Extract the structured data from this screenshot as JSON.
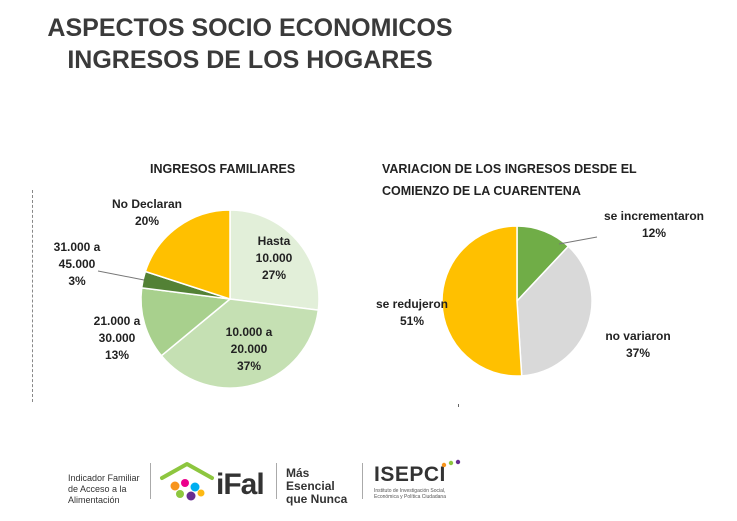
{
  "header": {
    "title_line1": "ASPECTOS SOCIO ECONOMICOS",
    "title_line2": "INGRESOS DE LOS HOGARES"
  },
  "chart_data": [
    {
      "type": "pie",
      "title": "INGRESOS FAMILIARES",
      "slices": [
        {
          "label_lines": [
            "Hasta",
            "10.000"
          ],
          "value": 27,
          "value_label": "27%",
          "color": "#e2efd9"
        },
        {
          "label_lines": [
            "10.000 a",
            "20.000"
          ],
          "value": 37,
          "value_label": "37%",
          "color": "#c5e0b3"
        },
        {
          "label_lines": [
            "21.000 a",
            "30.000"
          ],
          "value": 13,
          "value_label": "13%",
          "color": "#a8d08d"
        },
        {
          "label_lines": [
            "31.000 a",
            "45.000"
          ],
          "value": 3,
          "value_label": "3%",
          "color": "#538135"
        },
        {
          "label_lines": [
            "No Declaran"
          ],
          "value": 20,
          "value_label": "20%",
          "color": "#ffc000"
        }
      ]
    },
    {
      "type": "pie",
      "title_lines": [
        "VARIACION DE LOS INGRESOS DESDE EL",
        "COMIENZO DE LA CUARENTENA"
      ],
      "slices": [
        {
          "label_lines": [
            "se incrementaron"
          ],
          "value": 12,
          "value_label": "12%",
          "color": "#70ad47"
        },
        {
          "label_lines": [
            "no variaron"
          ],
          "value": 37,
          "value_label": "37%",
          "color": "#d9d9d9"
        },
        {
          "label_lines": [
            "se redujeron"
          ],
          "value": 51,
          "value_label": "51%",
          "color": "#ffc000"
        }
      ]
    }
  ],
  "footer": {
    "indicator_lines": [
      "Indicador Familiar",
      "de Acceso a la",
      "Alimentación"
    ],
    "ifal_text": "iFal",
    "slogan_lines": [
      "Más",
      "Esencial",
      "que Nunca"
    ],
    "isepci_text": "ISEPCI",
    "isepci_sub_lines": [
      "Instituto de Investigación Social,",
      "Económica y Política Ciudadana"
    ]
  }
}
